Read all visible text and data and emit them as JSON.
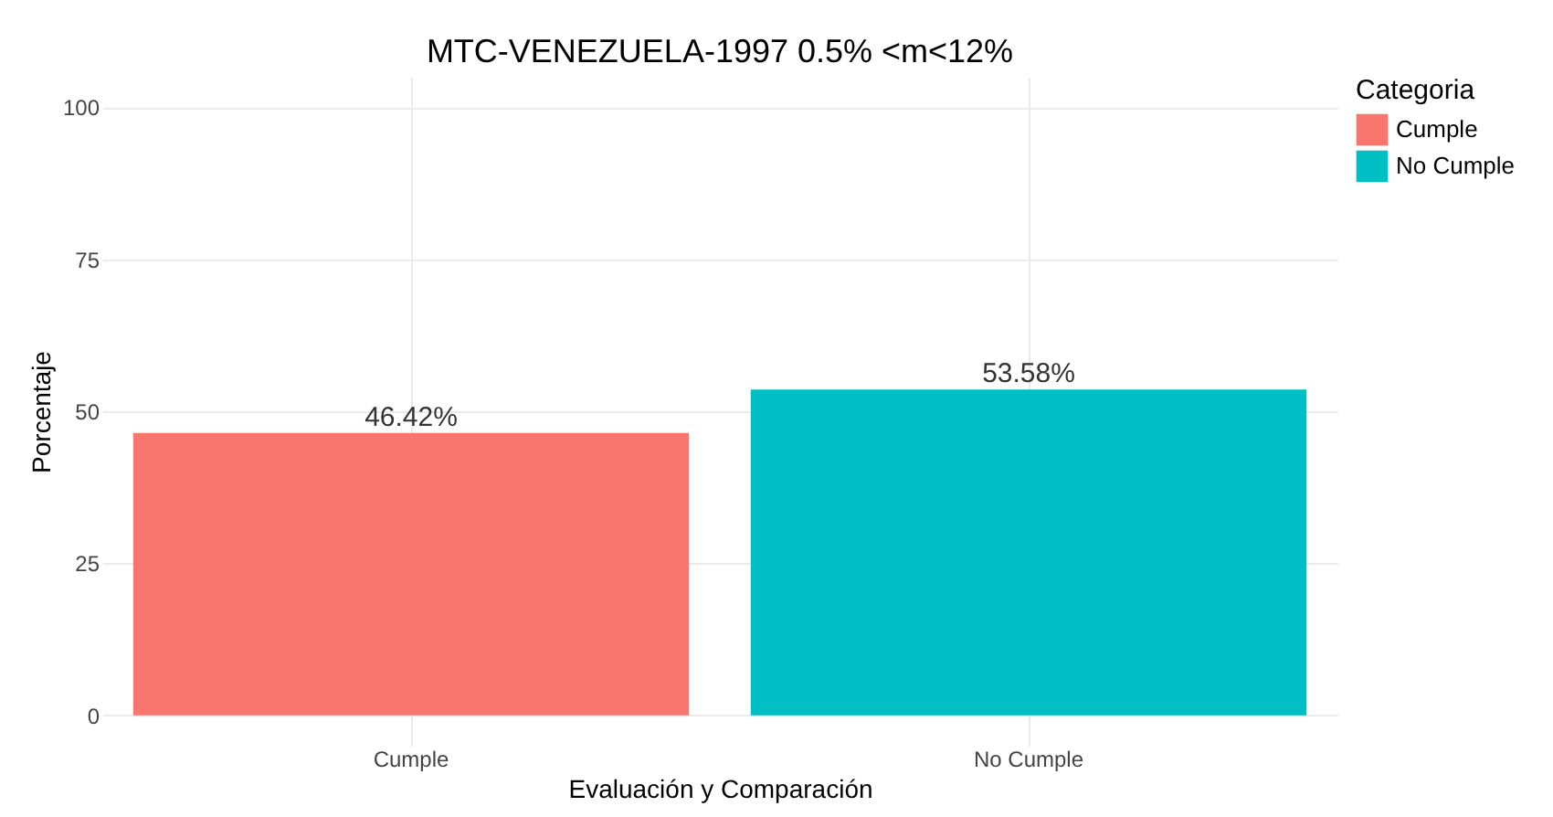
{
  "chart_data": {
    "type": "bar",
    "title": "MTC-VENEZUELA-1997 0.5% <m<12%",
    "xlabel": "Evaluación y Comparación",
    "ylabel": "Porcentaje",
    "legend_title": "Categoria",
    "categories": [
      "Cumple",
      "No Cumple"
    ],
    "stacked": true,
    "series": [
      {
        "name": "Cumple",
        "color": "#f8766d",
        "values": [
          46.42,
          null
        ],
        "value_labels": [
          "46.42%",
          null
        ]
      },
      {
        "name": "No Cumple",
        "color": "#00bfc4",
        "values": [
          null,
          53.58
        ],
        "value_labels": [
          null,
          "53.58%"
        ]
      }
    ],
    "ylim": [
      -5,
      105
    ],
    "yticks": [
      0,
      25,
      50,
      75,
      100
    ],
    "grid": true,
    "legend": "right"
  }
}
